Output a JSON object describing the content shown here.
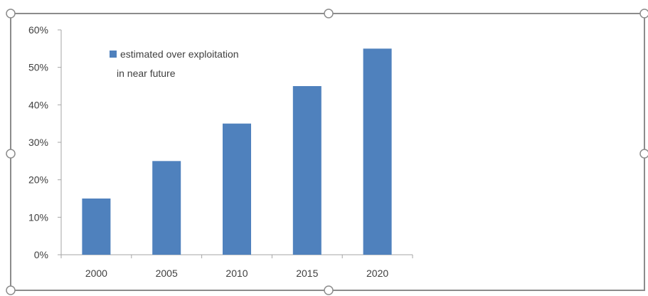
{
  "chart_data": {
    "type": "bar",
    "categories": [
      "2000",
      "2005",
      "2010",
      "2015",
      "2020"
    ],
    "values": [
      0.15,
      0.25,
      0.35,
      0.45,
      0.55
    ],
    "series": [
      {
        "name": "estimated over exploitation in near future",
        "values": [
          0.15,
          0.25,
          0.35,
          0.45,
          0.55
        ]
      }
    ],
    "ylim": [
      0,
      0.6
    ],
    "yticks": [
      0,
      0.1,
      0.2,
      0.3,
      0.4,
      0.5,
      0.6
    ],
    "ytick_labels": [
      "0%",
      "10%",
      "20%",
      "30%",
      "40%",
      "50%",
      "60%"
    ],
    "legend": {
      "placement": "top-left",
      "lines": [
        "estimated over exploitation",
        "in near future"
      ]
    },
    "grid": false,
    "title": "",
    "xlabel": "",
    "ylabel": "",
    "colors": {
      "bar": "#4F81BD",
      "axis": "#A6A6A6",
      "text": "#404040",
      "selection_frame": "#8C8C8C"
    }
  }
}
